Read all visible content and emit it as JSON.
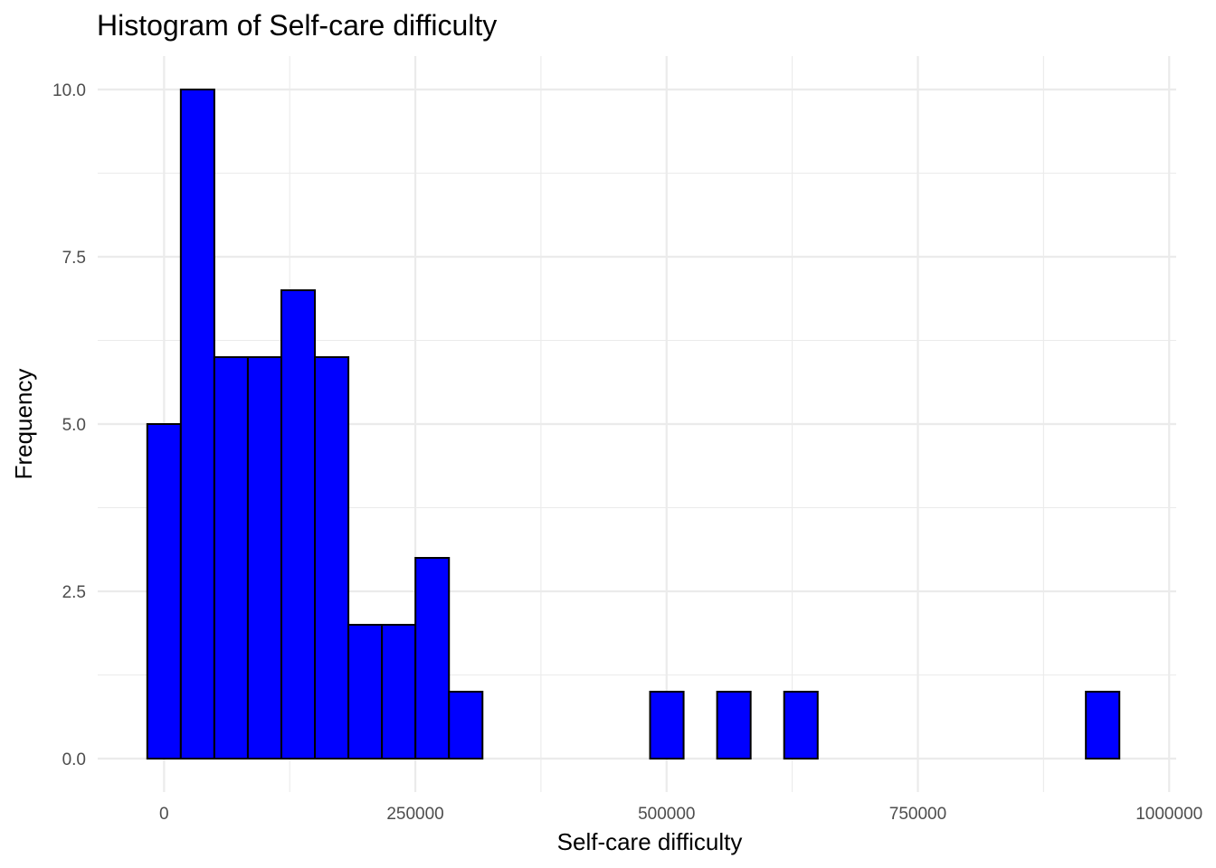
{
  "chart_data": {
    "type": "bar",
    "title": "Histogram of Self-care difficulty",
    "xlabel": "Self-care difficulty",
    "ylabel": "Frequency",
    "bin_width": 33350,
    "bin_start": -16680,
    "counts": [
      5,
      10,
      6,
      6,
      7,
      6,
      2,
      2,
      3,
      1,
      0,
      0,
      0,
      0,
      0,
      1,
      0,
      1,
      0,
      1,
      0,
      0,
      0,
      0,
      0,
      0,
      0,
      0,
      1
    ],
    "xlim": [
      -66000,
      1007000
    ],
    "ylim": [
      -0.5,
      10.5
    ],
    "x_ticks": [
      0,
      250000,
      500000,
      750000,
      1000000
    ],
    "x_tick_labels": [
      "0",
      "250000",
      "500000",
      "750000",
      "1000000"
    ],
    "y_ticks": [
      0,
      2.5,
      5,
      7.5,
      10
    ],
    "y_tick_labels": [
      "0.0",
      "2.5",
      "5.0",
      "7.5",
      "10.0"
    ],
    "bar_fill": "#0000ff",
    "bar_outline": "#000000",
    "grid": true,
    "legend": "none"
  }
}
